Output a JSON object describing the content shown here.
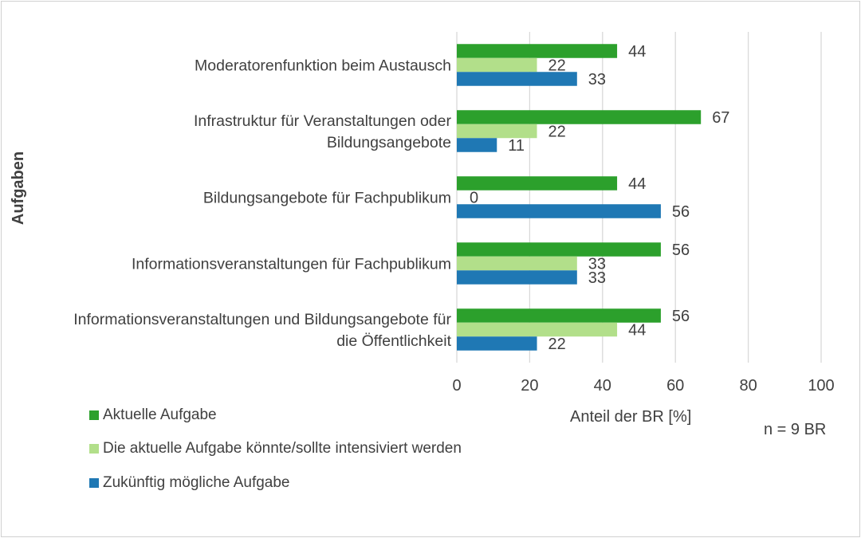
{
  "chart_data": {
    "type": "bar",
    "orientation": "horizontal",
    "ylabel": "Aufgaben",
    "xlabel": "Anteil der BR [%]",
    "note": "n = 9 BR",
    "xlim": [
      0,
      100
    ],
    "xticks": [
      0,
      20,
      40,
      60,
      80,
      100
    ],
    "grid": true,
    "legend_position": "bottom-left",
    "categories": [
      [
        "Moderatorenfunktion beim Austausch"
      ],
      [
        "Infrastruktur für Veranstaltungen oder",
        "Bildungsangebote"
      ],
      [
        "Bildungsangebote für Fachpublikum"
      ],
      [
        "Informationsveranstaltungen für Fachpublikum"
      ],
      [
        "Informationsveranstaltungen und Bildungsangebote für",
        "die Öffentlichkeit"
      ]
    ],
    "series": [
      {
        "name": "Aktuelle Aufgabe",
        "color": "#2ca02c",
        "values": [
          44,
          67,
          44,
          56,
          56
        ]
      },
      {
        "name": "Die aktuelle Aufgabe könnte/sollte intensiviert werden",
        "color": "#b2df8a",
        "values": [
          22,
          22,
          0,
          33,
          44
        ]
      },
      {
        "name": "Zukünftig mögliche Aufgabe",
        "color": "#1f78b4",
        "values": [
          33,
          11,
          56,
          33,
          22
        ]
      }
    ]
  }
}
